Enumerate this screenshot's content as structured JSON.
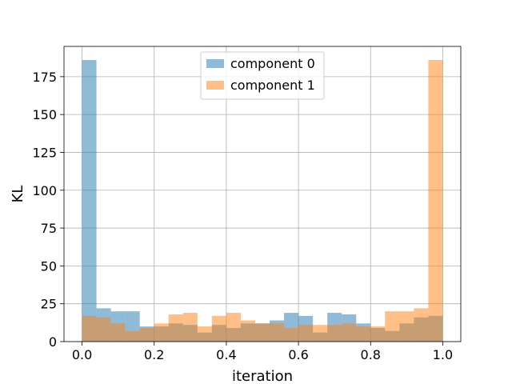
{
  "chart_data": {
    "type": "bar",
    "subtype": "overlapping-histogram",
    "title": "",
    "xlabel": "iteration",
    "ylabel": "KL",
    "xlim": [
      -0.05,
      1.05
    ],
    "ylim": [
      0,
      195
    ],
    "xticks": [
      0.0,
      0.2,
      0.4,
      0.6,
      0.8,
      1.0
    ],
    "xtick_labels": [
      "0.0",
      "0.2",
      "0.4",
      "0.6",
      "0.8",
      "1.0"
    ],
    "yticks": [
      0,
      25,
      50,
      75,
      100,
      125,
      150,
      175
    ],
    "ytick_labels": [
      "0",
      "25",
      "50",
      "75",
      "100",
      "125",
      "150",
      "175"
    ],
    "grid": true,
    "legend_position": "upper-center",
    "bin_range": [
      0,
      1
    ],
    "bins": 25,
    "series": [
      {
        "name": "component 0",
        "color": "#1f77b4",
        "opacity": 0.5,
        "values": [
          186,
          22,
          20,
          20,
          10,
          10,
          12,
          11,
          6,
          11,
          9,
          12,
          12,
          14,
          19,
          17,
          6,
          19,
          18,
          12,
          9,
          7,
          12,
          16,
          17
        ]
      },
      {
        "name": "component 1",
        "color": "#ff7f0e",
        "opacity": 0.5,
        "values": [
          17,
          16,
          12,
          7,
          9,
          12,
          18,
          19,
          10,
          17,
          19,
          14,
          12,
          12,
          9,
          11,
          11,
          11,
          12,
          10,
          10,
          20,
          20,
          22,
          186
        ]
      }
    ]
  }
}
